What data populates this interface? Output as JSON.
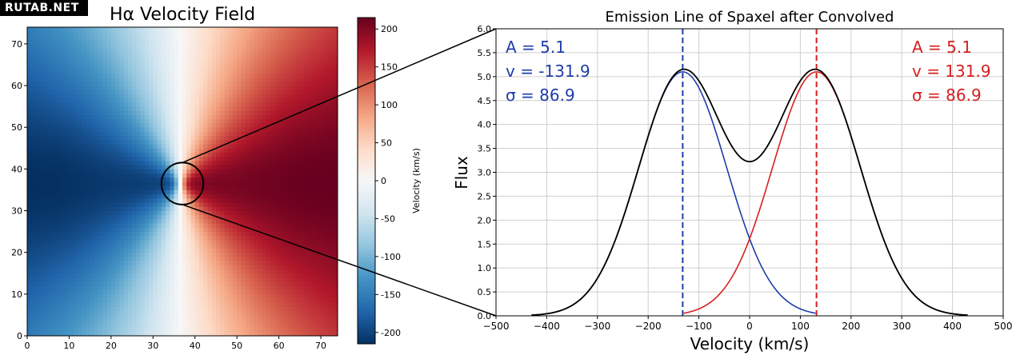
{
  "watermark": "RUTAB.NET",
  "colors": {
    "blue": "#1f3da8",
    "red": "#d62020",
    "black": "#000000",
    "grid": "#cfcfcf"
  },
  "chart_data": [
    {
      "type": "heatmap",
      "title": "Hα Velocity Field",
      "xlim": [
        0,
        74
      ],
      "ylim": [
        0,
        74
      ],
      "xticks": [
        0,
        10,
        20,
        30,
        40,
        50,
        60,
        70
      ],
      "yticks": [
        0,
        10,
        20,
        30,
        40,
        50,
        60,
        70
      ],
      "center": [
        36.5,
        36.5
      ],
      "velocity_range": [
        -215,
        215
      ],
      "colormap": "RdBu_r",
      "colorbar": {
        "label": "Velocity (km/s)",
        "ticks": [
          200,
          150,
          100,
          50,
          0,
          -50,
          -100,
          -150,
          -200
        ],
        "range": [
          -215,
          215
        ]
      },
      "highlight_circle": {
        "x": 37,
        "y": 36.5,
        "radius": 5
      }
    },
    {
      "type": "line",
      "title": "Emission Line of Spaxel after Convolved",
      "xlabel": "Velocity (km/s)",
      "ylabel": "Flux",
      "xlim": [
        -500,
        500
      ],
      "ylim": [
        0,
        6
      ],
      "xticks": [
        -500,
        -400,
        -300,
        -200,
        -100,
        0,
        100,
        200,
        300,
        400,
        500
      ],
      "yticks": [
        0.0,
        0.5,
        1.0,
        1.5,
        2.0,
        2.5,
        3.0,
        3.5,
        4.0,
        4.5,
        5.0,
        5.5,
        6.0
      ],
      "grid": true,
      "series": [
        {
          "name": "blue component",
          "A": 5.1,
          "v": -131.9,
          "sigma": 86.9,
          "color": "#1f3da8"
        },
        {
          "name": "red component",
          "A": 5.1,
          "v": 131.9,
          "sigma": 86.9,
          "color": "#d62020"
        },
        {
          "name": "sum",
          "color": "#000000"
        }
      ],
      "vlines": [
        -131.9,
        131.9
      ],
      "annotations": {
        "blue": [
          "A = 5.1",
          "v = -131.9",
          "σ = 86.9"
        ],
        "red": [
          "A = 5.1",
          "v = 131.9",
          "σ = 86.9"
        ]
      }
    }
  ]
}
